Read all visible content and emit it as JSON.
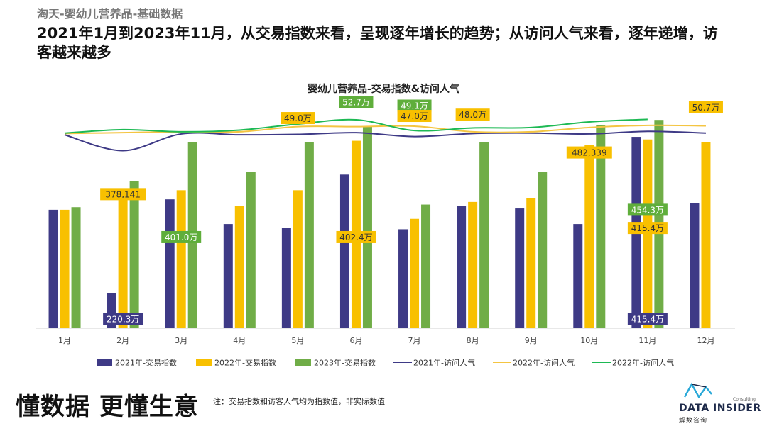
{
  "header": {
    "breadcrumb": "淘天-婴幼儿营养品-基础数据",
    "headline": "2021年1月到2023年11月，从交易指数来看，呈现逐年增长的趋势；从访问人气来看，逐年递增，访客越来越多"
  },
  "footer": {
    "slogan": "懂数据 更懂生意",
    "note": "注：交易指数和访客人气均为指数值，非实际数值"
  },
  "logo": {
    "brand": "DATA INSIDER",
    "sub": "解数咨询",
    "tiny": "Consulting"
  },
  "colors": {
    "s2021": "#3e3a86",
    "s2022": "#f8c000",
    "s2023": "#70ad47",
    "l2021": "#3e3a86",
    "l2022": "#f4c542",
    "l2023": "#1db954"
  },
  "chart_data": {
    "type": "bar+line",
    "title": "婴幼儿营养品-交易指数&访问人气",
    "categories": [
      "1月",
      "2月",
      "3月",
      "4月",
      "5月",
      "6月",
      "7月",
      "8月",
      "9月",
      "10月",
      "11月",
      "12月"
    ],
    "bar_series": [
      {
        "name": "2021年-交易指数",
        "values": [
          366,
          302,
          374,
          355,
          352,
          393,
          351,
          369,
          367,
          355,
          422,
          371
        ]
      },
      {
        "name": "2022年-交易指数",
        "values": [
          366,
          378,
          381,
          369,
          381,
          419,
          359,
          372,
          375,
          416,
          420,
          418
        ]
      },
      {
        "name": "2023年-交易指数",
        "values": [
          368,
          388,
          418,
          395,
          418,
          430,
          370,
          418,
          395,
          431,
          435
        ]
      }
    ],
    "line_series": [
      {
        "name": "2021年-访问人气",
        "values": [
          45.1,
          41.4,
          45.3,
          45.1,
          45.2,
          45.6,
          44.7,
          45.4,
          45.5,
          45.3,
          45.9,
          45.5
        ]
      },
      {
        "name": "2022年-访问人气",
        "values": [
          45.4,
          45.6,
          45.8,
          45.8,
          47.0,
          47.0,
          47.1,
          45.8,
          45.8,
          46.8,
          47.3,
          47.2
        ]
      },
      {
        "name": "2022年-访问人气",
        "values": [
          45.5,
          46.3,
          45.8,
          46.2,
          47.6,
          48.6,
          46.1,
          46.7,
          46.8,
          48.1,
          48.7
        ]
      }
    ],
    "bar_ylim": [
      275,
      440
    ],
    "line_ylim": [
      0,
      60
    ],
    "annotations": [
      {
        "text": "378,141",
        "style": "yellow",
        "month": 1,
        "level": 378
      },
      {
        "text": "220.3万",
        "style": "navy",
        "month": 1,
        "level": 282
      },
      {
        "text": "401.0万",
        "style": "green",
        "month": 2,
        "level": 345
      },
      {
        "text": "49.0万",
        "style": "yellow",
        "month": 4,
        "level": 49.0
      },
      {
        "text": "52.7万",
        "style": "green",
        "month": 5,
        "level": 52.7
      },
      {
        "text": "402.4万",
        "style": "yellow",
        "month": 5,
        "level": 345
      },
      {
        "text": "49.1万",
        "style": "green",
        "month": 6,
        "level": 51.9
      },
      {
        "text": "47.0万",
        "style": "yellow",
        "month": 6,
        "level": 49.5
      },
      {
        "text": "48.0万",
        "style": "yellow",
        "month": 7,
        "level": 49.8
      },
      {
        "text": "482,339",
        "style": "yellow",
        "month": 9,
        "level": 410
      },
      {
        "text": "454.3万",
        "style": "green",
        "month": 10,
        "level": 366
      },
      {
        "text": "415.4万",
        "style": "yellow",
        "month": 10,
        "level": 352
      },
      {
        "text": "415.4万",
        "style": "navy",
        "month": 10,
        "level": 282
      },
      {
        "text": "50.7万",
        "style": "yellow",
        "month": 11,
        "level": 51.5
      }
    ],
    "grid": false,
    "legend_position": "bottom"
  }
}
